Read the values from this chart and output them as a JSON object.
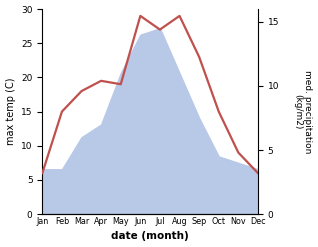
{
  "months": [
    "Jan",
    "Feb",
    "Mar",
    "Apr",
    "May",
    "Jun",
    "Jul",
    "Aug",
    "Sep",
    "Oct",
    "Nov",
    "Dec"
  ],
  "month_indices": [
    1,
    2,
    3,
    4,
    5,
    6,
    7,
    8,
    9,
    10,
    11,
    12
  ],
  "temperature": [
    6,
    15,
    18,
    19.5,
    19,
    29,
    27,
    29,
    23,
    15,
    9,
    6
  ],
  "precipitation": [
    3.5,
    3.5,
    6,
    7,
    11,
    14,
    14.5,
    11,
    7.5,
    4.5,
    4,
    3.5
  ],
  "temp_color": "#c0504d",
  "precip_fill_color": "#b8c9e8",
  "ylim_temp": [
    0,
    30
  ],
  "ylim_precip": [
    0,
    16
  ],
  "ylabel_left": "max temp (C)",
  "ylabel_right": "med. precipitation\n(kg/m2)",
  "xlabel": "date (month)",
  "bg_color": "#ffffff",
  "temp_linewidth": 1.6,
  "fig_width": 3.18,
  "fig_height": 2.47,
  "dpi": 100
}
